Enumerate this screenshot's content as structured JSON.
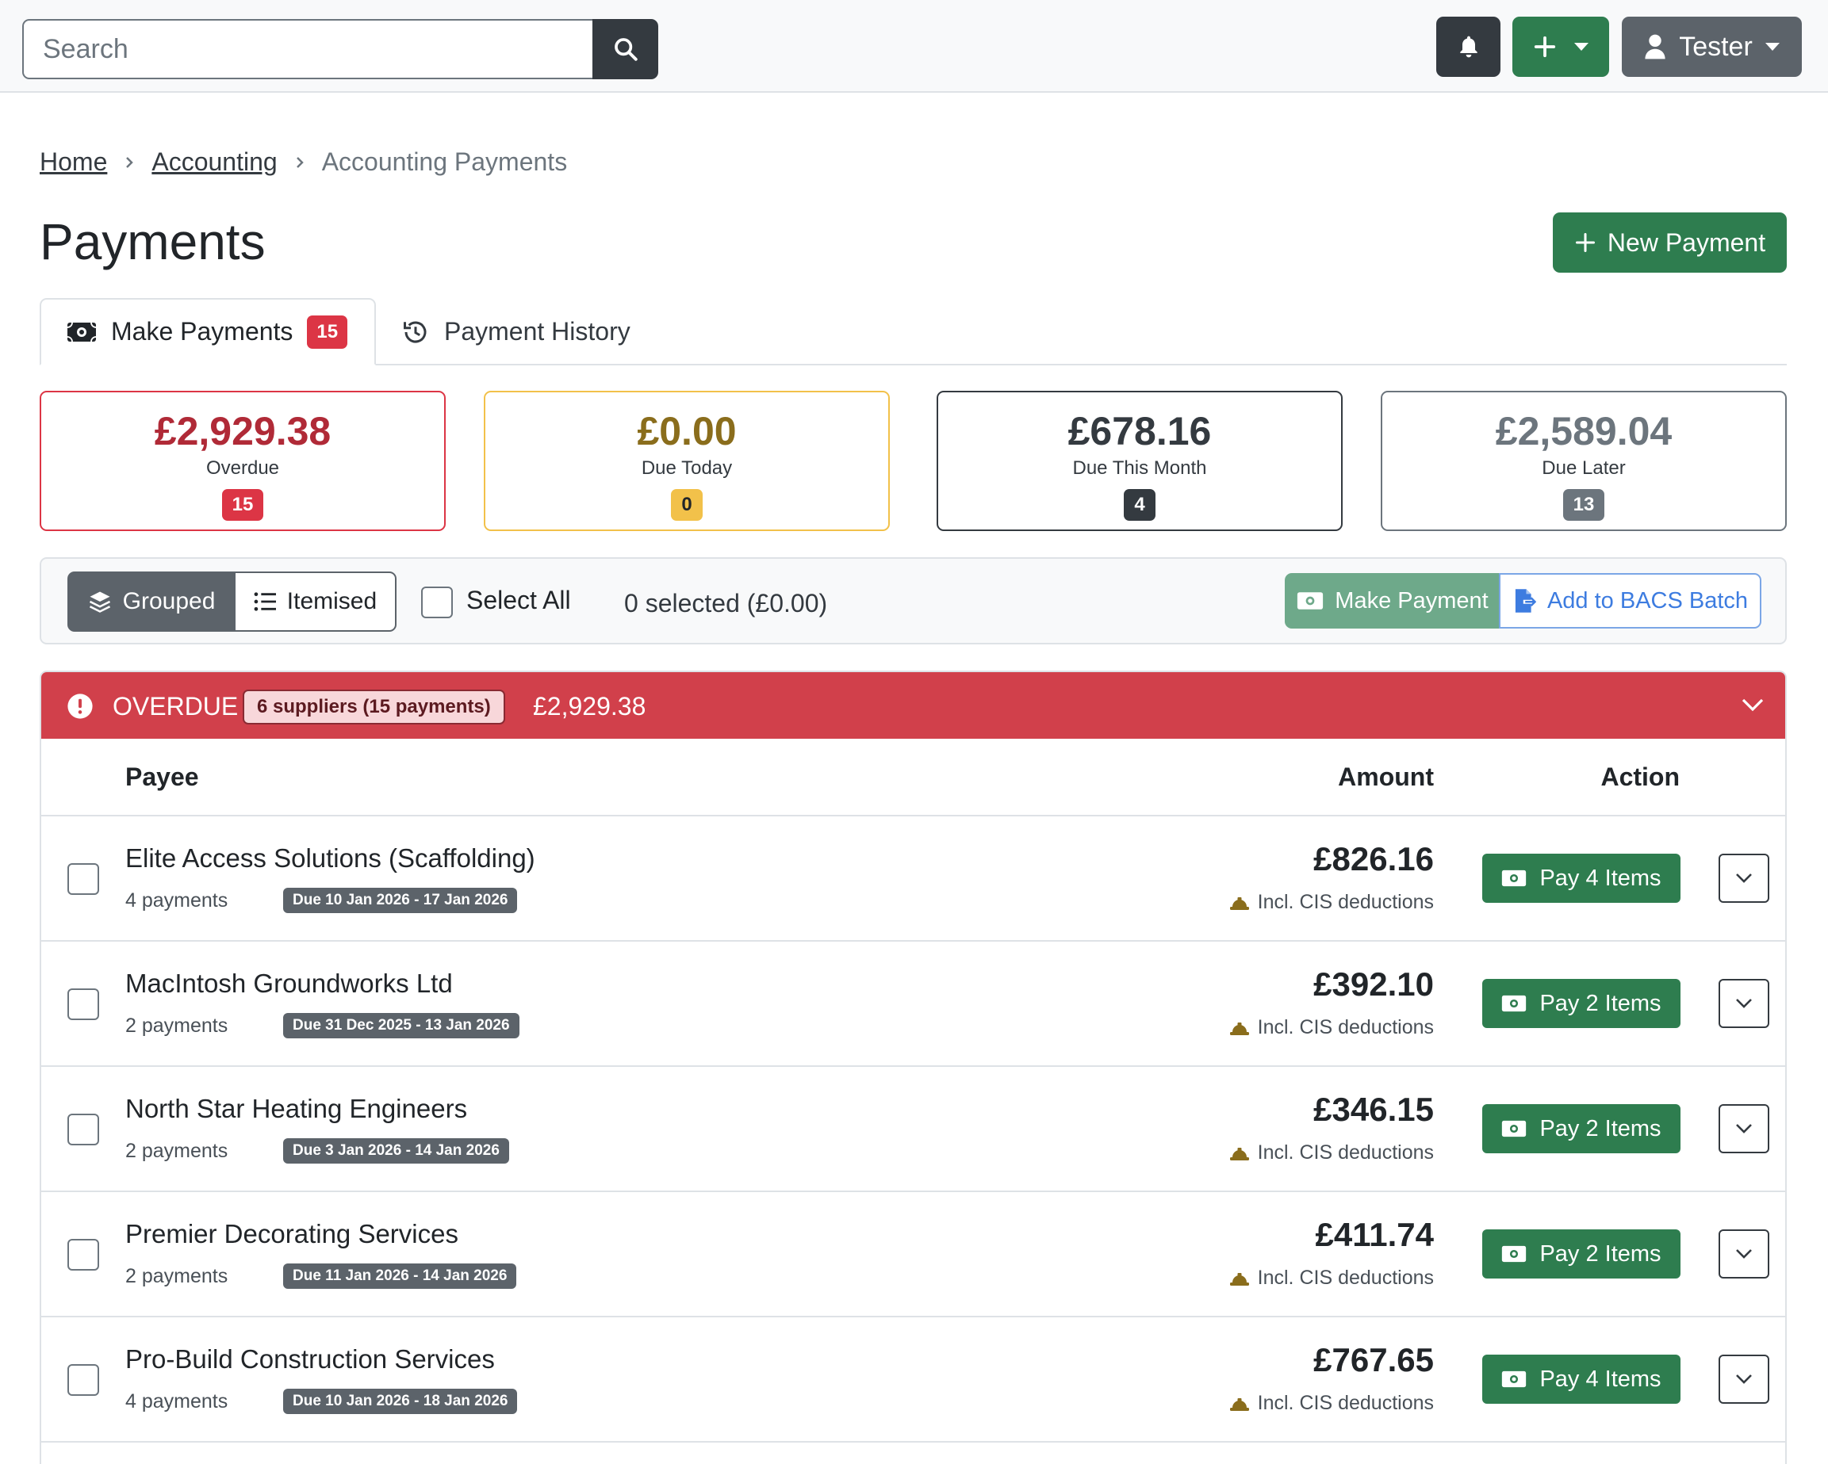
{
  "navbar": {
    "search_placeholder": "Search",
    "user_label": "Tester"
  },
  "breadcrumb": {
    "home": "Home",
    "accounting": "Accounting",
    "current": "Accounting Payments"
  },
  "page": {
    "title": "Payments",
    "new_payment_label": "New Payment"
  },
  "tabs": {
    "make_payments": {
      "label": "Make Payments",
      "badge": "15"
    },
    "payment_history": {
      "label": "Payment History"
    }
  },
  "summary": {
    "overdue": {
      "amount": "£2,929.38",
      "label": "Overdue",
      "count": "15",
      "color": "#b02a37"
    },
    "due_today": {
      "amount": "£0.00",
      "label": "Due Today",
      "count": "0",
      "color": "#8a6d1c"
    },
    "due_this_month": {
      "amount": "£678.16",
      "label": "Due This Month",
      "count": "4",
      "color": "#343a40"
    },
    "due_later": {
      "amount": "£2,589.04",
      "label": "Due Later",
      "count": "13",
      "color": "#6c757d"
    }
  },
  "toolbar": {
    "grouped_label": "Grouped",
    "itemised_label": "Itemised",
    "select_all_label": "Select All",
    "selected_text": "0 selected (£0.00)",
    "make_payment_label": "Make Payment",
    "bacs_label": "Add to BACS Batch"
  },
  "overdue_section": {
    "title": "OVERDUE",
    "badge": "6 suppliers (15 payments)",
    "total": "£2,929.38",
    "columns": {
      "payee": "Payee",
      "amount": "Amount",
      "action": "Action"
    },
    "cis_note": "Incl. CIS deductions",
    "rows": [
      {
        "payee": "Elite Access Solutions (Scaffolding)",
        "count": "4 payments",
        "due": "Due 10 Jan 2026 - 17 Jan 2026",
        "amount": "£826.16",
        "pay_label": "Pay 4 Items"
      },
      {
        "payee": "MacIntosh Groundworks Ltd",
        "count": "2 payments",
        "due": "Due 31 Dec 2025 - 13 Jan 2026",
        "amount": "£392.10",
        "pay_label": "Pay 2 Items"
      },
      {
        "payee": "North Star Heating Engineers",
        "count": "2 payments",
        "due": "Due 3 Jan 2026 - 14 Jan 2026",
        "amount": "£346.15",
        "pay_label": "Pay 2 Items"
      },
      {
        "payee": "Premier Decorating Services",
        "count": "2 payments",
        "due": "Due 11 Jan 2026 - 14 Jan 2026",
        "amount": "£411.74",
        "pay_label": "Pay 2 Items"
      },
      {
        "payee": "Pro-Build Construction Services",
        "count": "4 payments",
        "due": "Due 10 Jan 2026 - 18 Jan 2026",
        "amount": "£767.65",
        "pay_label": "Pay 4 Items"
      }
    ]
  },
  "colors": {
    "primary_green": "#2e7d4f",
    "danger_red": "#d1404b",
    "dark": "#343a40",
    "secondary": "#5c636a"
  }
}
